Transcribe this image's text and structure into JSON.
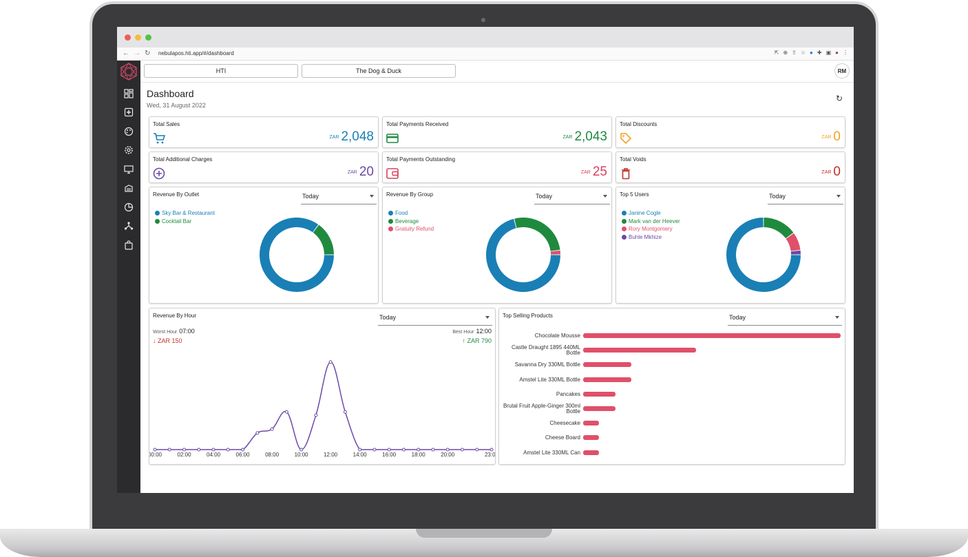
{
  "browser": {
    "url": "nebulapos.hti.app/#/dashboard"
  },
  "header": {
    "tabs": [
      "HTI",
      "The Dog & Duck"
    ],
    "avatar": "RM"
  },
  "sidebar": {
    "icons": [
      "dashboard-icon",
      "add-box-icon",
      "palette-icon",
      "settings-icon",
      "monitor-icon",
      "menu-book-icon",
      "pie-chart-icon",
      "hierarchy-icon",
      "shopping-bag-icon"
    ]
  },
  "page": {
    "title": "Dashboard",
    "date": "Wed, 31 August 2022"
  },
  "kpis": [
    {
      "title": "Total Sales",
      "currency": "ZAR",
      "value": "2,048",
      "color": "#1a7fb5",
      "icon": "cart-icon"
    },
    {
      "title": "Total Payments Received",
      "currency": "ZAR",
      "value": "2,043",
      "color": "#1f8a3e",
      "icon": "credit-card-icon"
    },
    {
      "title": "Total Discounts",
      "currency": "ZAR",
      "value": "0",
      "color": "#f0a224",
      "icon": "tag-icon"
    },
    {
      "title": "Total Additional Charges",
      "currency": "ZAR",
      "value": "20",
      "color": "#6a4aa6",
      "icon": "plus-circle-icon"
    },
    {
      "title": "Total Payments Outstanding",
      "currency": "ZAR",
      "value": "25",
      "color": "#d9415e",
      "icon": "wallet-icon"
    },
    {
      "title": "Total Voids",
      "currency": "ZAR",
      "value": "0",
      "color": "#c0312a",
      "icon": "trash-icon"
    }
  ],
  "donut_cards": [
    {
      "title": "Revenue By Outlet",
      "period": "Today",
      "legend": [
        {
          "label": "Sky Bar & Restaurant",
          "color": "#1a7fb5"
        },
        {
          "label": "Cocktail Bar",
          "color": "#1f8a3e"
        }
      ]
    },
    {
      "title": "Revenue By Group",
      "period": "Today",
      "legend": [
        {
          "label": "Food",
          "color": "#1a7fb5"
        },
        {
          "label": "Beverage",
          "color": "#1f8a3e"
        },
        {
          "label": "Gratuity Refund",
          "color": "#e0506a"
        }
      ]
    },
    {
      "title": "Top 5 Users",
      "period": "Today",
      "legend": [
        {
          "label": "Janine Cogle",
          "color": "#1a7fb5"
        },
        {
          "label": "Mark van der Heever",
          "color": "#1f8a3e"
        },
        {
          "label": "Rory Montgomery",
          "color": "#e0506a"
        },
        {
          "label": "Buhle Mkhize",
          "color": "#6a4aa6"
        }
      ]
    }
  ],
  "hour_card": {
    "title": "Revenue By Hour",
    "period": "Today",
    "worst_label": "Worst Hour",
    "worst_hour": "07:00",
    "worst_amount": "ZAR 150",
    "best_label": "Best Hour",
    "best_hour": "12:00",
    "best_amount": "ZAR 790"
  },
  "products_card": {
    "title": "Top Selling Products",
    "period": "Today"
  },
  "chart_data": [
    {
      "type": "pie",
      "title": "Revenue By Outlet",
      "categories": [
        "Sky Bar & Restaurant",
        "Cocktail Bar"
      ],
      "values": [
        85,
        15
      ],
      "colors": [
        "#1a7fb5",
        "#1f8a3e"
      ]
    },
    {
      "type": "pie",
      "title": "Revenue By Group",
      "categories": [
        "Food",
        "Beverage",
        "Gratuity Refund"
      ],
      "values": [
        71,
        27,
        2
      ],
      "colors": [
        "#1a7fb5",
        "#1f8a3e",
        "#e0506a"
      ]
    },
    {
      "type": "pie",
      "title": "Top 5 Users",
      "categories": [
        "Janine Cogle",
        "Mark van der Heever",
        "Rory Montgomery",
        "Buhle Mkhize"
      ],
      "values": [
        75,
        15,
        8,
        2
      ],
      "colors": [
        "#1a7fb5",
        "#1f8a3e",
        "#e0506a",
        "#6a4aa6"
      ]
    },
    {
      "type": "line",
      "title": "Revenue By Hour",
      "x": [
        "00:00",
        "01:00",
        "02:00",
        "03:00",
        "04:00",
        "05:00",
        "06:00",
        "07:00",
        "08:00",
        "09:00",
        "10:00",
        "11:00",
        "12:00",
        "13:00",
        "14:00",
        "15:00",
        "16:00",
        "17:00",
        "18:00",
        "19:00",
        "20:00",
        "21:00",
        "22:00",
        "23:00"
      ],
      "x_tick_labels": [
        "00:00",
        "02:00",
        "04:00",
        "06:00",
        "08:00",
        "10:00",
        "12:00",
        "14:00",
        "16:00",
        "18:00",
        "20:00",
        "23:00"
      ],
      "values": [
        0,
        0,
        0,
        0,
        0,
        0,
        0,
        150,
        185,
        340,
        0,
        310,
        790,
        340,
        0,
        0,
        0,
        0,
        0,
        0,
        0,
        0,
        0,
        0
      ],
      "ylim": [
        0,
        900
      ],
      "color": "#6a4aa6"
    },
    {
      "type": "bar",
      "title": "Top Selling Products",
      "orientation": "horizontal",
      "categories": [
        "Chocolate Mousse",
        "Castle Draught 1895 440ML Bottle",
        "Savanna Dry 330ML Bottle",
        "Amstel Lite 330ML Bottle",
        "Pancakes",
        "Brutal Fruit Apple-Ginger 300ml Bottle",
        "Cheesecake",
        "Cheese Board",
        "Amstel Lite 330ML Can"
      ],
      "values": [
        16,
        7,
        3,
        3,
        2,
        2,
        1,
        1,
        1
      ],
      "color": "#e0506a"
    }
  ]
}
